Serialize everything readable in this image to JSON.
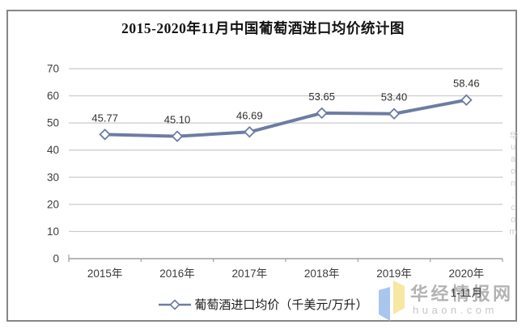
{
  "title": "2015-2020年11月中国葡萄酒进口均价统计图",
  "chart_data": {
    "type": "line",
    "title": "2015-2020年11月中国葡萄酒进口均价统计图",
    "categories": [
      "2015年",
      "2016年",
      "2017年",
      "2018年",
      "2019年",
      "2020年"
    ],
    "last_category_note": "1-11月",
    "series": [
      {
        "name": "葡萄酒进口均价（千美元/万升）",
        "values": [
          45.77,
          45.1,
          46.69,
          53.65,
          53.4,
          58.46
        ]
      }
    ],
    "value_labels": [
      "45.77",
      "45.10",
      "46.69",
      "53.65",
      "53.40",
      "58.46"
    ],
    "ylim": [
      0,
      70
    ],
    "ytick_step": 10,
    "ytick_labels": [
      "0",
      "10",
      "20",
      "30",
      "40",
      "50",
      "60",
      "70"
    ],
    "grid": true,
    "legend_position": "bottom",
    "line_color": "#6e7ca3",
    "marker": "white-diamond"
  },
  "legend": {
    "label": "葡萄酒进口均价（千美元/万升）"
  },
  "watermark": {
    "brand_cn": "华经情报网",
    "brand_domain": "huaon.com",
    "side_vertical": "华uaon.com",
    "logo_color_left": "#a9c6ef",
    "logo_color_right": "#f6e8a3"
  },
  "colors": {
    "line": "#6e7ca3",
    "grid": "#cbcbcb",
    "axis": "#9e9e9e",
    "border": "#878787",
    "label_text": "#3c3c3c",
    "value_text": "#2e2e2e",
    "watermark_text": "#a6a6a6",
    "watermark_domain": "#c6c6c6"
  }
}
